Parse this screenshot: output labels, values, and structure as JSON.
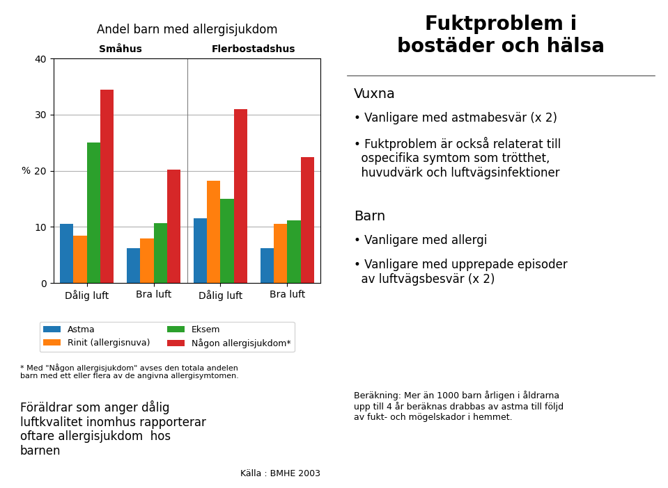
{
  "chart_data": {
    "type": "bar",
    "title": "Andel barn med allergisjukdom",
    "y_label": "%",
    "categories": [
      "Dålig luft",
      "Bra luft",
      "Dålig luft",
      "Bra luft"
    ],
    "series": [
      {
        "name": "Astma",
        "values": [
          10.5,
          6.2,
          11.5,
          6.2
        ]
      },
      {
        "name": "Rinit (allergisnuva)",
        "values": [
          8.5,
          8.0,
          18.2,
          10.5
        ]
      },
      {
        "name": "Eksem",
        "values": [
          25.0,
          10.7,
          15.0,
          11.2
        ]
      },
      {
        "name": "Någon allergisjukdom*",
        "values": [
          34.5,
          20.2,
          31.0,
          22.5
        ]
      }
    ],
    "ylim": [
      0,
      40
    ],
    "yticks": [
      0,
      10,
      20,
      30,
      40
    ],
    "grid": true,
    "legend": "lower center",
    "annotations": [
      "Småhus",
      "Flerbostadshus",
      "* Med \"Någon allergisjukdom\" avses den totala andelen\nbarn med ett eller flera av de angivna allergisymtomen.",
      "Föräldrar som anger dålig\nluftkvalitet inomhus rapporterar\noftare allergisjukdom  hos\nbarnen",
      "Källa : BMHE 2003",
      "Fuktproblem i\nbostäder och hälsa",
      "Vuxna",
      "• Vanligare med astmabesvär (x 2)",
      "• Fuktproblem är också relaterat till\n  ospecifika symtom som trötthet,\n  huvudvärk och luftvägsinfektioner",
      "Barn",
      "• Vanligare med allergi",
      "• Vanligare med upprepade episoder\n  av luftvägsbesvär (x 2)",
      "Beräkning: Mer än 1000 barn årligen i åldrarna\nupp till 4 år beräknas drabbas av astma till följd\nav fukt- och mögelskador i hemmet."
    ]
  }
}
